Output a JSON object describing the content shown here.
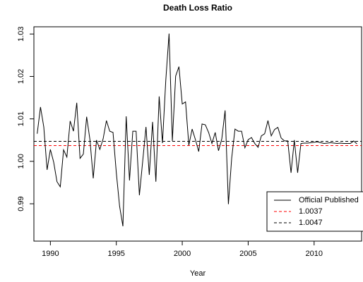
{
  "chart_data": {
    "type": "line",
    "title": "Death Loss Ratio",
    "x_label": "Year",
    "x": [
      1989,
      1989.25,
      1989.5,
      1989.75,
      1990,
      1990.25,
      1990.5,
      1990.75,
      1991,
      1991.25,
      1991.5,
      1991.75,
      1992,
      1992.25,
      1992.5,
      1992.75,
      1993,
      1993.25,
      1993.5,
      1993.75,
      1994,
      1994.25,
      1994.5,
      1994.75,
      1995,
      1995.25,
      1995.5,
      1995.75,
      1996,
      1996.25,
      1996.5,
      1996.75,
      1997,
      1997.25,
      1997.5,
      1997.75,
      1998,
      1998.25,
      1998.5,
      1998.75,
      1999,
      1999.25,
      1999.5,
      1999.75,
      2000,
      2000.25,
      2000.5,
      2000.75,
      2001,
      2001.25,
      2001.5,
      2001.75,
      2002,
      2002.25,
      2002.5,
      2002.75,
      2003,
      2003.25,
      2003.5,
      2003.75,
      2004,
      2004.25,
      2004.5,
      2004.75,
      2005,
      2005.25,
      2005.5,
      2005.75,
      2006,
      2006.25,
      2006.5,
      2006.75,
      2007,
      2007.25,
      2007.5,
      2007.75,
      2008,
      2008.25,
      2008.5,
      2008.75,
      2009,
      2009.25,
      2009.5,
      2009.75,
      2010,
      2010.25,
      2010.5,
      2010.75,
      2011,
      2011.25,
      2011.5,
      2011.75,
      2012,
      2012.25,
      2012.5,
      2012.75,
      2013,
      2013.25
    ],
    "series": [
      {
        "name": "Official Published",
        "color": "#000000",
        "values": [
          1.0065,
          1.0128,
          1.0081,
          0.998,
          1.0028,
          0.9998,
          0.9952,
          0.994,
          1.0027,
          1.001,
          1.0095,
          1.0071,
          1.0138,
          1.0007,
          1.0017,
          1.0105,
          1.0051,
          0.996,
          1.005,
          1.0028,
          1.0053,
          1.0096,
          1.0071,
          1.0068,
          0.9973,
          0.9894,
          0.9847,
          1.0106,
          0.9955,
          1.0071,
          1.0071,
          0.992,
          1.0,
          1.0081,
          0.9968,
          1.0093,
          0.9952,
          1.0153,
          1.0043,
          1.019,
          1.0301,
          1.0048,
          1.0201,
          1.0223,
          1.0135,
          1.014,
          1.0038,
          1.0076,
          1.0051,
          1.0023,
          1.0088,
          1.0086,
          1.0068,
          1.0042,
          1.0068,
          1.0025,
          1.0053,
          1.012,
          0.9899,
          1.0008,
          1.0076,
          1.0071,
          1.0071,
          1.0032,
          1.0051,
          1.0056,
          1.0042,
          1.0033,
          1.006,
          1.0065,
          1.0096,
          1.006,
          1.0075,
          1.008,
          1.0055,
          1.0048,
          1.0048,
          0.9973,
          1.005,
          0.9973,
          1.0042,
          1.0043,
          1.0043,
          1.0044,
          1.0045,
          1.0046,
          1.0044,
          1.0042,
          1.0043,
          1.0044,
          1.0043,
          1.0042,
          1.0043,
          1.0042,
          1.0042,
          1.0042,
          1.0048,
          1.0041
        ]
      }
    ],
    "hlines": [
      {
        "name": "1.0037",
        "value": 1.0037,
        "color": "#ff0000"
      },
      {
        "name": "1.0047",
        "value": 1.0047,
        "color": "#000000"
      }
    ],
    "xlim": [
      1988.75,
      2013.6
    ],
    "xticks": [
      1990,
      1995,
      2000,
      2005,
      2010
    ],
    "ylim": [
      0.9812,
      1.0317
    ],
    "yticks": [
      0.99,
      {
        "value": 1.0,
        "label": "1.00"
      },
      1.01,
      1.02,
      1.03
    ],
    "legend": "bottom-right"
  }
}
